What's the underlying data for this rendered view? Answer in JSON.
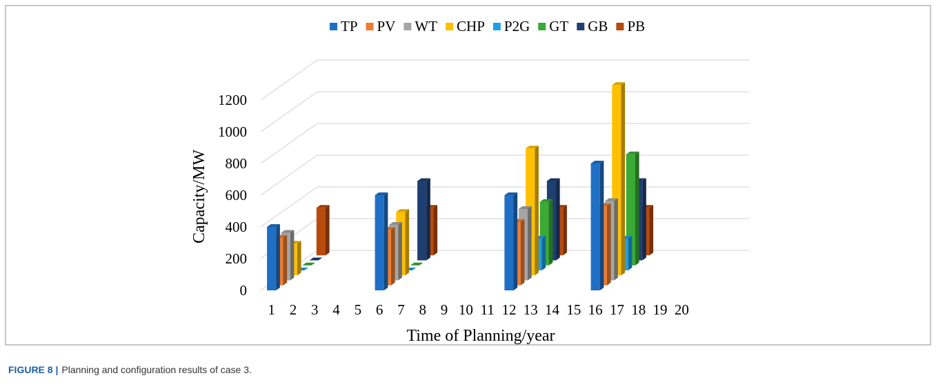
{
  "chart_data": {
    "type": "bar3d",
    "caption_label": "FIGURE 8 |",
    "caption": "Planning and configuration results of case 3.",
    "xlabel": "Time of Planning/year",
    "ylabel": "Capacity/MW",
    "categories": [
      "1",
      "2",
      "3",
      "4",
      "5",
      "6",
      "7",
      "8",
      "9",
      "10",
      "11",
      "12",
      "13",
      "14",
      "15",
      "16",
      "17",
      "18",
      "19",
      "20"
    ],
    "ylim": [
      0,
      1200
    ],
    "yticks": [
      0,
      200,
      400,
      600,
      800,
      1000,
      1200
    ],
    "grid": true,
    "legend": "top",
    "series": [
      {
        "name": "TP",
        "color": "#1f6fc5",
        "values": [
          400,
          null,
          null,
          null,
          null,
          600,
          null,
          null,
          null,
          null,
          null,
          600,
          null,
          null,
          null,
          800,
          null,
          null,
          null,
          null
        ]
      },
      {
        "name": "PV",
        "color": "#ed7d31",
        "values": [
          300,
          null,
          null,
          null,
          null,
          350,
          null,
          null,
          null,
          null,
          null,
          400,
          null,
          null,
          null,
          500,
          null,
          null,
          null,
          null
        ]
      },
      {
        "name": "WT",
        "color": "#a5a5a5",
        "values": [
          300,
          null,
          null,
          null,
          null,
          350,
          null,
          null,
          null,
          null,
          null,
          450,
          null,
          null,
          null,
          500,
          null,
          null,
          null,
          null
        ]
      },
      {
        "name": "CHP",
        "color": "#ffc000",
        "values": [
          200,
          null,
          null,
          null,
          null,
          400,
          null,
          null,
          null,
          null,
          null,
          800,
          null,
          null,
          null,
          1200,
          null,
          null,
          null,
          null
        ]
      },
      {
        "name": "P2G",
        "color": "#1fa0e6",
        "values": [
          0,
          null,
          null,
          null,
          null,
          0,
          null,
          null,
          null,
          null,
          null,
          200,
          null,
          null,
          null,
          200,
          null,
          null,
          null,
          null
        ]
      },
      {
        "name": "GT",
        "color": "#3aaa35",
        "values": [
          0,
          null,
          null,
          null,
          null,
          0,
          null,
          null,
          null,
          null,
          null,
          400,
          null,
          null,
          null,
          700,
          null,
          null,
          null,
          null
        ]
      },
      {
        "name": "GB",
        "color": "#1f3f73",
        "values": [
          0,
          null,
          null,
          null,
          null,
          500,
          null,
          null,
          null,
          null,
          null,
          500,
          null,
          null,
          null,
          500,
          null,
          null,
          null,
          null
        ]
      },
      {
        "name": "PB",
        "color": "#b84a0c",
        "values": [
          300,
          null,
          null,
          null,
          null,
          300,
          null,
          null,
          null,
          null,
          null,
          300,
          null,
          null,
          null,
          300,
          null,
          null,
          null,
          null
        ]
      }
    ]
  }
}
